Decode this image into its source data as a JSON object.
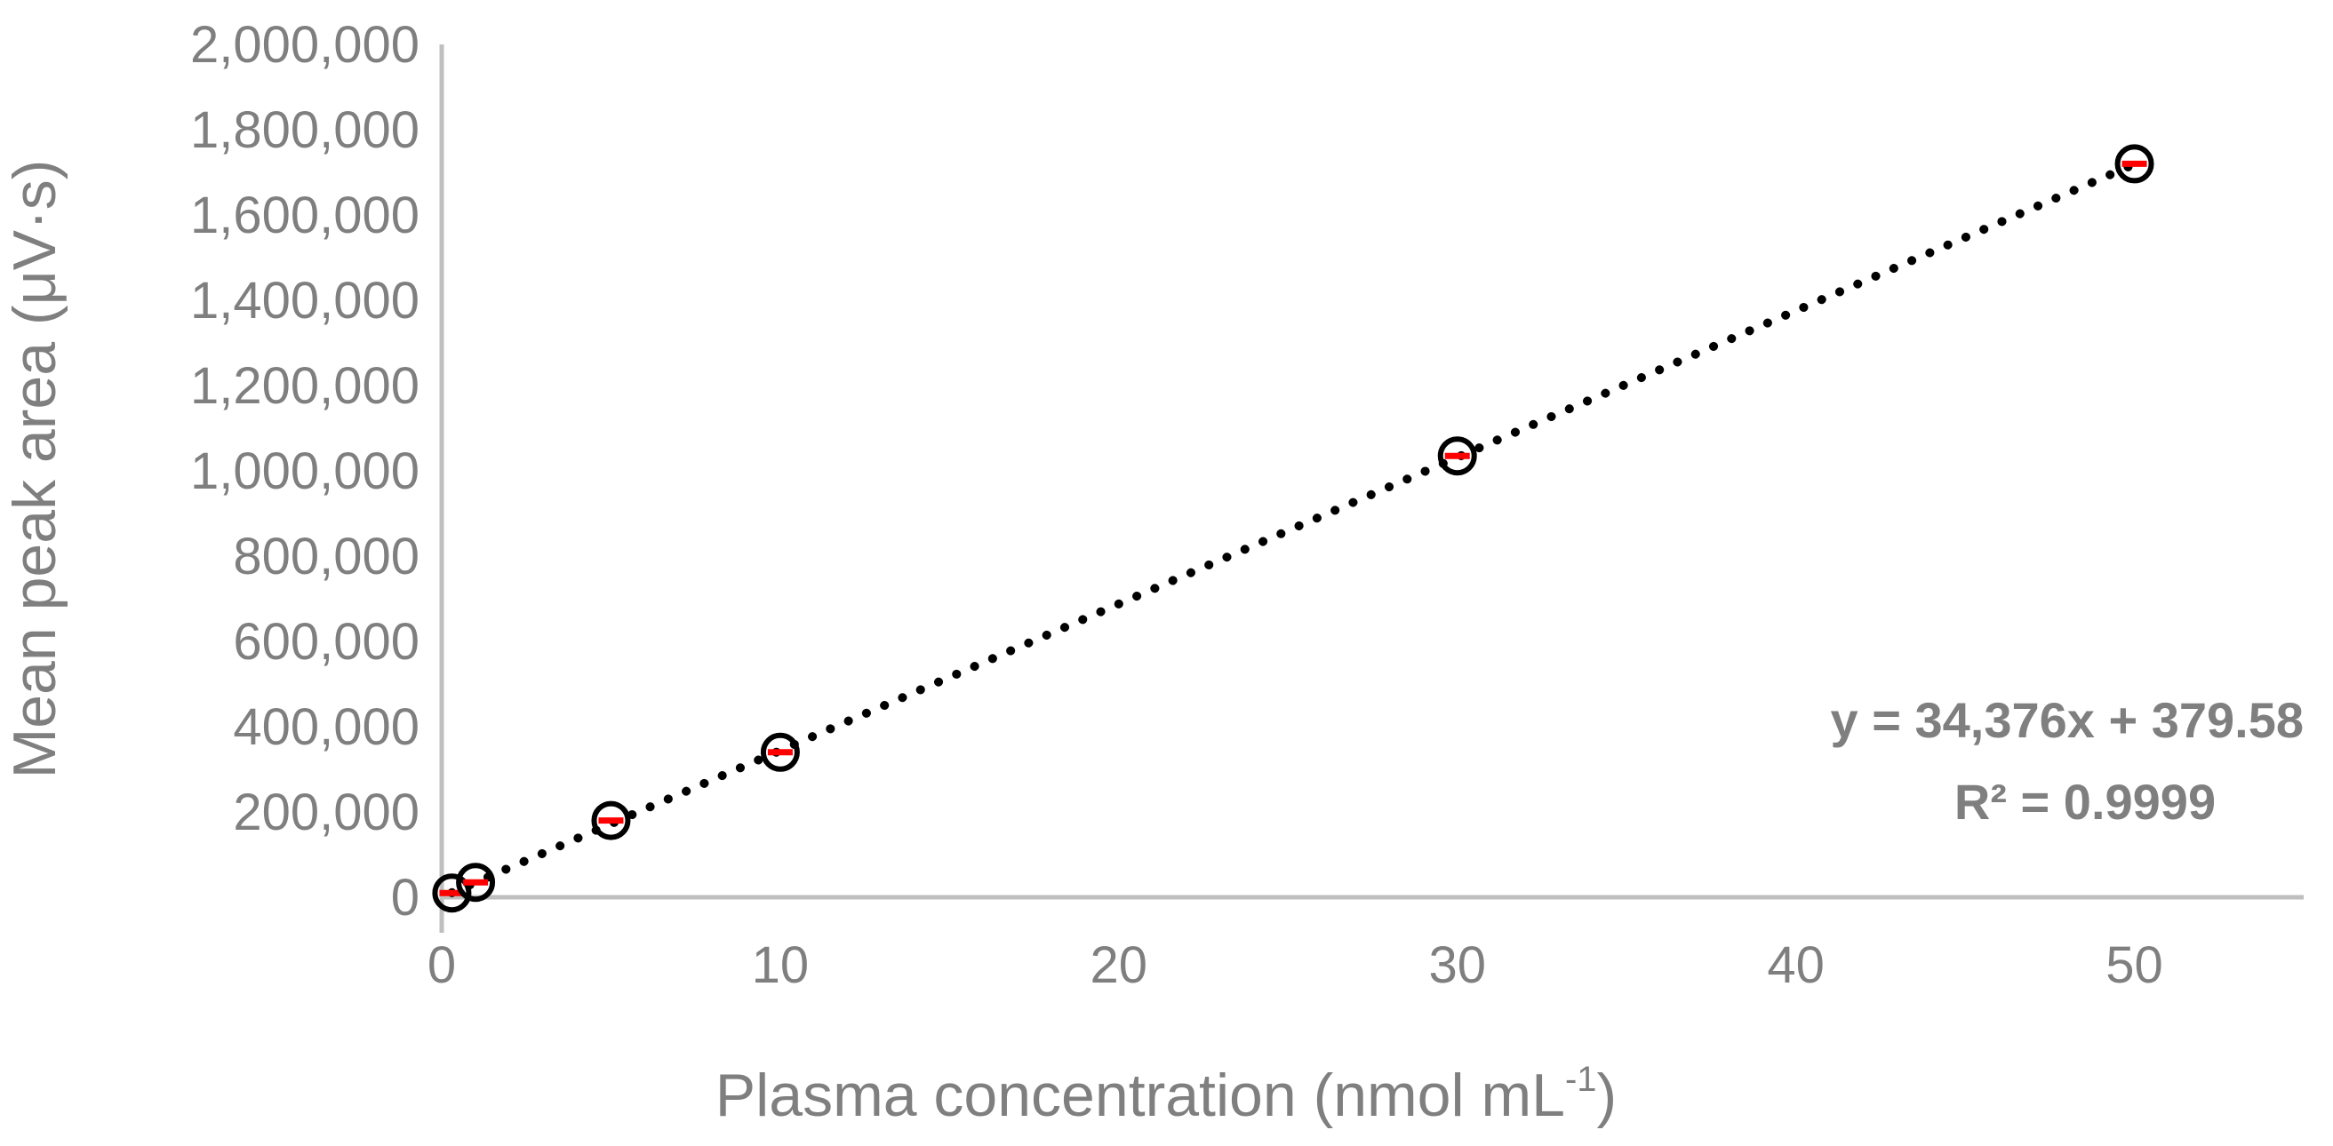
{
  "chart_data": {
    "type": "scatter",
    "xlabel": "Plasma concentration (nmol mL",
    "xlabel_sup": "-1",
    "xlabel_close": ")",
    "ylabel": "Mean peak area (μV·s)",
    "xlim": [
      0,
      55
    ],
    "ylim": [
      0,
      2000000
    ],
    "x_ticks": [
      0,
      10,
      20,
      30,
      40,
      50
    ],
    "y_ticks": [
      0,
      200000,
      400000,
      600000,
      800000,
      1000000,
      1200000,
      1400000,
      1600000,
      1800000,
      2000000
    ],
    "x_tick_labels": [
      "0",
      "10",
      "20",
      "30",
      "40",
      "50"
    ],
    "y_tick_labels": [
      "0",
      "200,000",
      "400,000",
      "600,000",
      "800,000",
      "1,000,000",
      "1,200,000",
      "1,400,000",
      "1,600,000",
      "1,800,000",
      "2,000,000"
    ],
    "grid": false,
    "points": [
      {
        "x": 0.3,
        "y": 10000
      },
      {
        "x": 1,
        "y": 35000
      },
      {
        "x": 5,
        "y": 180000
      },
      {
        "x": 10,
        "y": 340000
      },
      {
        "x": 30,
        "y": 1035000
      },
      {
        "x": 50,
        "y": 1720000
      }
    ],
    "trendline": {
      "slope": 34376,
      "intercept": 379.58,
      "style": "dotted",
      "x_range": [
        0.3,
        50
      ]
    },
    "equation_text": "y = 34,376x + 379.58",
    "r2_text": "R² = 0.9999",
    "colors": {
      "marker": "#000000",
      "error_bar": "#ff0000",
      "trendline": "#000000",
      "axis": "#bfbfbf",
      "text": "#7f7f7f"
    }
  }
}
